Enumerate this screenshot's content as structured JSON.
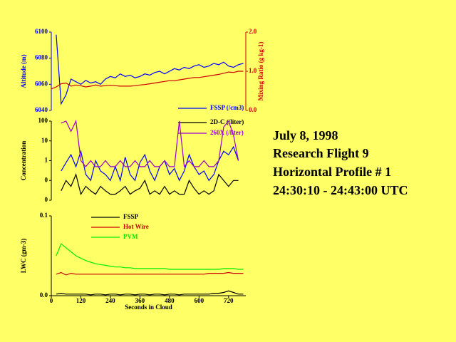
{
  "chart_data": [
    {
      "type": "line",
      "ylabel": "Altitude (m)",
      "y2label": "Mixing Ratio (g kg-1)",
      "x": [
        0,
        20,
        40,
        60,
        80,
        100,
        120,
        140,
        160,
        180,
        200,
        220,
        240,
        260,
        280,
        300,
        320,
        340,
        360,
        380,
        400,
        420,
        440,
        460,
        480,
        500,
        520,
        540,
        560,
        580,
        600,
        620,
        640,
        660,
        680,
        700,
        720,
        740,
        760,
        780
      ],
      "xlim": [
        0,
        790
      ],
      "ylim": [
        6040,
        6100
      ],
      "yticks": [
        6040,
        6060,
        6080,
        6100
      ],
      "y2lim": [
        0,
        2
      ],
      "y2ticks": [
        {
          "value": 0,
          "label": "0.0"
        },
        {
          "value": 1,
          "label": "1.0"
        },
        {
          "value": 2,
          "label": "2.0"
        }
      ],
      "series": [
        {
          "color": "#0000ff",
          "values": [
            null,
            6098,
            6045,
            6052,
            6064,
            6062,
            6060,
            6063,
            6061,
            6062,
            6060,
            6064,
            6066,
            6065,
            6068,
            6066,
            6067,
            6065,
            6066,
            6068,
            6067,
            6069,
            6070,
            6068,
            6070,
            6072,
            6071,
            6073,
            6072,
            6074,
            6075,
            6073,
            6074,
            6076,
            6075,
            6077,
            6074,
            6073,
            6075,
            6076
          ]
        },
        {
          "color": "#cc0000",
          "axis": "y2",
          "values": [
            0.55,
            0.6,
            0.68,
            0.7,
            0.62,
            0.65,
            0.63,
            0.6,
            0.62,
            0.65,
            0.62,
            0.63,
            0.64,
            0.63,
            0.62,
            0.62,
            0.62,
            0.63,
            0.65,
            0.66,
            0.68,
            0.7,
            0.72,
            0.74,
            0.76,
            0.76,
            0.78,
            0.8,
            0.82,
            0.84,
            0.84,
            0.86,
            0.88,
            0.9,
            0.92,
            0.95,
            0.98,
            0.97,
            1.0,
            1.0
          ]
        }
      ]
    },
    {
      "type": "line",
      "ylabel": "Concentration",
      "log_scale": true,
      "x": [
        0,
        20,
        40,
        60,
        80,
        100,
        120,
        140,
        160,
        180,
        200,
        220,
        240,
        260,
        280,
        300,
        320,
        340,
        360,
        380,
        400,
        420,
        440,
        460,
        480,
        500,
        520,
        540,
        560,
        580,
        600,
        620,
        640,
        660,
        680,
        700,
        720,
        740,
        760,
        780
      ],
      "xlim": [
        0,
        790
      ],
      "ylim": [
        0.01,
        100
      ],
      "yticks": [
        {
          "value": 0.01,
          "label": "0"
        },
        {
          "value": 0.1,
          "label": "0"
        },
        1,
        10,
        100
      ],
      "series": [
        {
          "name": "FSSP (/cm3)",
          "color": "#0000ff",
          "values": [
            null,
            null,
            0.3,
            0.8,
            2,
            0.5,
            3,
            0.2,
            0.1,
            1,
            0.3,
            0.2,
            0.1,
            0.5,
            0.1,
            1.5,
            0.2,
            0.1,
            0.8,
            2,
            0.3,
            0.1,
            0.5,
            1,
            0.2,
            0.4,
            0.1,
            0.3,
            2,
            0.5,
            0.2,
            0.3,
            0.1,
            0.2,
            1,
            3,
            2,
            5,
            1,
            null
          ]
        },
        {
          "name": "2D-C (/liter)",
          "color": "#000000",
          "values": [
            null,
            null,
            0.03,
            0.1,
            0.05,
            0.2,
            0.02,
            0.05,
            0.03,
            0.02,
            0.05,
            0.03,
            0.02,
            0.02,
            0.03,
            0.05,
            0.02,
            0.03,
            0.04,
            0.1,
            0.02,
            0.03,
            0.02,
            0.05,
            0.02,
            0.03,
            0.02,
            0.02,
            0.1,
            0.04,
            0.02,
            0.03,
            0.02,
            0.03,
            0.2,
            0.1,
            0.05,
            0.1,
            0.1,
            null
          ]
        },
        {
          "name": "260X (/liter)",
          "color": "#9900cc",
          "values": [
            null,
            null,
            80,
            100,
            30,
            100,
            1,
            0.5,
            1,
            0.5,
            0.5,
            1,
            0.5,
            0.5,
            1,
            0.5,
            0.5,
            1,
            0.5,
            0.5,
            1,
            0.5,
            0.5,
            1,
            0.5,
            0.5,
            100,
            0.5,
            1,
            0.5,
            0.5,
            1,
            0.5,
            0.5,
            1,
            50,
            100,
            20,
            1,
            null
          ]
        }
      ]
    },
    {
      "type": "line",
      "ylabel": "LWC (gm-3)",
      "xlabel": "Seconds in Cloud",
      "x": [
        0,
        20,
        40,
        60,
        80,
        100,
        120,
        140,
        160,
        180,
        200,
        220,
        240,
        260,
        280,
        300,
        320,
        340,
        360,
        380,
        400,
        420,
        440,
        460,
        480,
        500,
        520,
        540,
        560,
        580,
        600,
        620,
        640,
        660,
        680,
        700,
        720,
        740,
        760,
        780
      ],
      "xlim": [
        0,
        790
      ],
      "xticks": [
        0,
        120,
        240,
        360,
        480,
        600,
        720
      ],
      "ylim": [
        0,
        0.1
      ],
      "yticks": [
        {
          "value": 0,
          "label": "0.0"
        },
        0.1
      ],
      "series": [
        {
          "name": "FSSP",
          "color": "#000000",
          "values": [
            null,
            0.002,
            0.003,
            0.002,
            0.002,
            0.002,
            0.002,
            0.002,
            0.001,
            0.002,
            0.002,
            0.001,
            0.002,
            0.002,
            0.001,
            0.002,
            0.002,
            0.001,
            0.002,
            0.002,
            0.001,
            0.002,
            0.002,
            0.001,
            0.002,
            0.002,
            0.001,
            0.002,
            0.002,
            0.002,
            0.002,
            0.002,
            0.002,
            0.003,
            0.003,
            0.004,
            0.006,
            0.004,
            0.002,
            0.002
          ]
        },
        {
          "name": "Hot Wire",
          "color": "#cc0000",
          "values": [
            null,
            0.027,
            0.029,
            0.026,
            0.028,
            0.027,
            0.027,
            0.027,
            0.027,
            0.027,
            0.027,
            0.027,
            0.027,
            0.027,
            0.027,
            0.027,
            0.027,
            0.027,
            0.027,
            0.027,
            0.027,
            0.027,
            0.027,
            0.027,
            0.027,
            0.027,
            0.027,
            0.027,
            0.027,
            0.027,
            0.027,
            0.027,
            0.028,
            0.028,
            0.028,
            0.028,
            0.029,
            0.028,
            0.028,
            0.028
          ]
        },
        {
          "name": "PVM",
          "color": "#00ee00",
          "values": [
            null,
            0.05,
            0.065,
            0.06,
            0.055,
            0.05,
            0.047,
            0.044,
            0.042,
            0.04,
            0.039,
            0.038,
            0.037,
            0.036,
            0.036,
            0.035,
            0.035,
            0.034,
            0.034,
            0.034,
            0.034,
            0.034,
            0.034,
            0.034,
            0.033,
            0.033,
            0.033,
            0.033,
            0.033,
            0.033,
            0.033,
            0.033,
            0.033,
            0.033,
            0.033,
            0.034,
            0.034,
            0.034,
            0.033,
            0.033
          ]
        }
      ]
    }
  ],
  "info": [
    "July 8, 1998",
    "Research Flight 9",
    "Horizontal Profile # 1",
    "24:30:10 - 24:43:00 UTC"
  ]
}
